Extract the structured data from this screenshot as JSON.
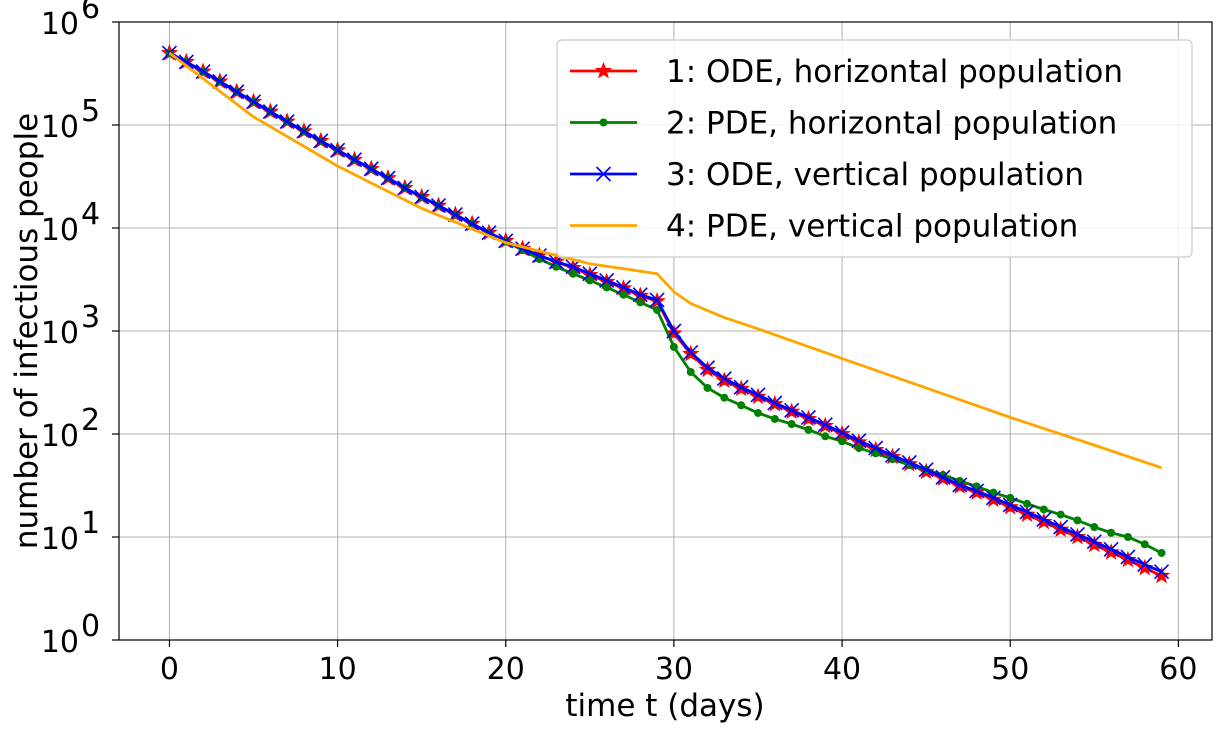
{
  "chart_data": {
    "type": "line",
    "xlabel": "time t (days)",
    "ylabel": "number of infectious people",
    "xlim": [
      -3,
      62
    ],
    "ylim": [
      1,
      1000000
    ],
    "yscale": "log",
    "grid": true,
    "legend_position": "top-right",
    "x_ticks": [
      0,
      10,
      20,
      30,
      40,
      50,
      60
    ],
    "y_ticks": [
      {
        "base": "10",
        "exp": "0",
        "value": 1
      },
      {
        "base": "10",
        "exp": "1",
        "value": 10
      },
      {
        "base": "10",
        "exp": "2",
        "value": 100
      },
      {
        "base": "10",
        "exp": "3",
        "value": 1000
      },
      {
        "base": "10",
        "exp": "4",
        "value": 10000
      },
      {
        "base": "10",
        "exp": "5",
        "value": 100000
      },
      {
        "base": "10",
        "exp": "6",
        "value": 1000000
      }
    ],
    "series": [
      {
        "name": "1: ODE, horizontal population",
        "color": "#ff0000",
        "marker": "star",
        "x": [
          0,
          1,
          2,
          3,
          4,
          5,
          6,
          7,
          8,
          9,
          10,
          11,
          12,
          13,
          14,
          15,
          16,
          17,
          18,
          19,
          20,
          21,
          22,
          23,
          24,
          25,
          26,
          27,
          28,
          29,
          30,
          31,
          32,
          33,
          34,
          35,
          36,
          37,
          38,
          39,
          40,
          41,
          42,
          43,
          44,
          45,
          46,
          47,
          48,
          49,
          50,
          51,
          52,
          53,
          54,
          55,
          56,
          57,
          58,
          59
        ],
        "y": [
          500000,
          410000,
          330000,
          265000,
          210000,
          168000,
          135000,
          108000,
          87000,
          70000,
          57000,
          46000,
          37500,
          30500,
          24500,
          20000,
          16500,
          13500,
          11000,
          9000,
          7500,
          6300,
          5400,
          4700,
          4100,
          3500,
          3000,
          2600,
          2200,
          1950,
          950,
          600,
          420,
          330,
          275,
          230,
          195,
          165,
          140,
          120,
          100,
          83,
          70,
          60,
          51,
          43,
          37,
          31,
          27,
          23,
          19.5,
          16.5,
          14,
          11.8,
          10,
          8.4,
          7.1,
          6,
          5,
          4.2
        ]
      },
      {
        "name": "2: PDE, horizontal population",
        "color": "#008000",
        "marker": "dot",
        "x": [
          0,
          1,
          2,
          3,
          4,
          5,
          6,
          7,
          8,
          9,
          10,
          11,
          12,
          13,
          14,
          15,
          16,
          17,
          18,
          19,
          20,
          21,
          22,
          23,
          24,
          25,
          26,
          27,
          28,
          29,
          30,
          31,
          32,
          33,
          34,
          35,
          36,
          37,
          38,
          39,
          40,
          41,
          42,
          43,
          44,
          45,
          46,
          47,
          48,
          49,
          50,
          51,
          52,
          53,
          54,
          55,
          56,
          57,
          58,
          59
        ],
        "y": [
          500000,
          410000,
          330000,
          265000,
          210000,
          168000,
          135000,
          108000,
          87000,
          70000,
          57000,
          46000,
          37500,
          30500,
          24500,
          20000,
          16500,
          13500,
          11000,
          9000,
          7400,
          6100,
          5000,
          4200,
          3600,
          3100,
          2650,
          2250,
          1900,
          1600,
          700,
          400,
          280,
          225,
          190,
          160,
          140,
          125,
          110,
          95,
          85,
          73,
          65,
          57,
          50,
          45,
          40,
          35,
          31,
          27,
          24,
          21,
          18.5,
          16.5,
          14.5,
          12.5,
          11,
          10,
          8.5,
          7
        ]
      },
      {
        "name": "3: ODE, vertical population",
        "color": "#0000ff",
        "marker": "x",
        "x": [
          0,
          1,
          2,
          3,
          4,
          5,
          6,
          7,
          8,
          9,
          10,
          11,
          12,
          13,
          14,
          15,
          16,
          17,
          18,
          19,
          20,
          21,
          22,
          23,
          24,
          25,
          26,
          27,
          28,
          29,
          30,
          31,
          32,
          33,
          34,
          35,
          36,
          37,
          38,
          39,
          40,
          41,
          42,
          43,
          44,
          45,
          46,
          47,
          48,
          49,
          50,
          51,
          52,
          53,
          54,
          55,
          56,
          57,
          58,
          59
        ],
        "y": [
          500000,
          410000,
          330000,
          265000,
          210000,
          168000,
          135000,
          108000,
          87000,
          70000,
          57000,
          46000,
          37500,
          30500,
          24500,
          20000,
          16500,
          13500,
          11000,
          9000,
          7500,
          6300,
          5400,
          4700,
          4200,
          3600,
          3100,
          2650,
          2250,
          2000,
          1000,
          620,
          440,
          345,
          285,
          240,
          200,
          170,
          145,
          123,
          103,
          86,
          73,
          62,
          53,
          45,
          38,
          32,
          28,
          24,
          20.5,
          17.5,
          14.8,
          12.5,
          10.6,
          9,
          7.6,
          6.4,
          5.4,
          4.6
        ]
      },
      {
        "name": "4: PDE, vertical population",
        "color": "#ffa500",
        "marker": "none",
        "x": [
          0,
          5,
          10,
          15,
          20,
          25,
          29,
          30,
          31,
          33,
          35,
          40,
          45,
          50,
          55,
          59
        ],
        "y": [
          500000,
          120000,
          40000,
          15500,
          7200,
          4500,
          3600,
          2400,
          1850,
          1350,
          1050,
          540,
          280,
          145,
          78,
          47
        ]
      }
    ]
  }
}
